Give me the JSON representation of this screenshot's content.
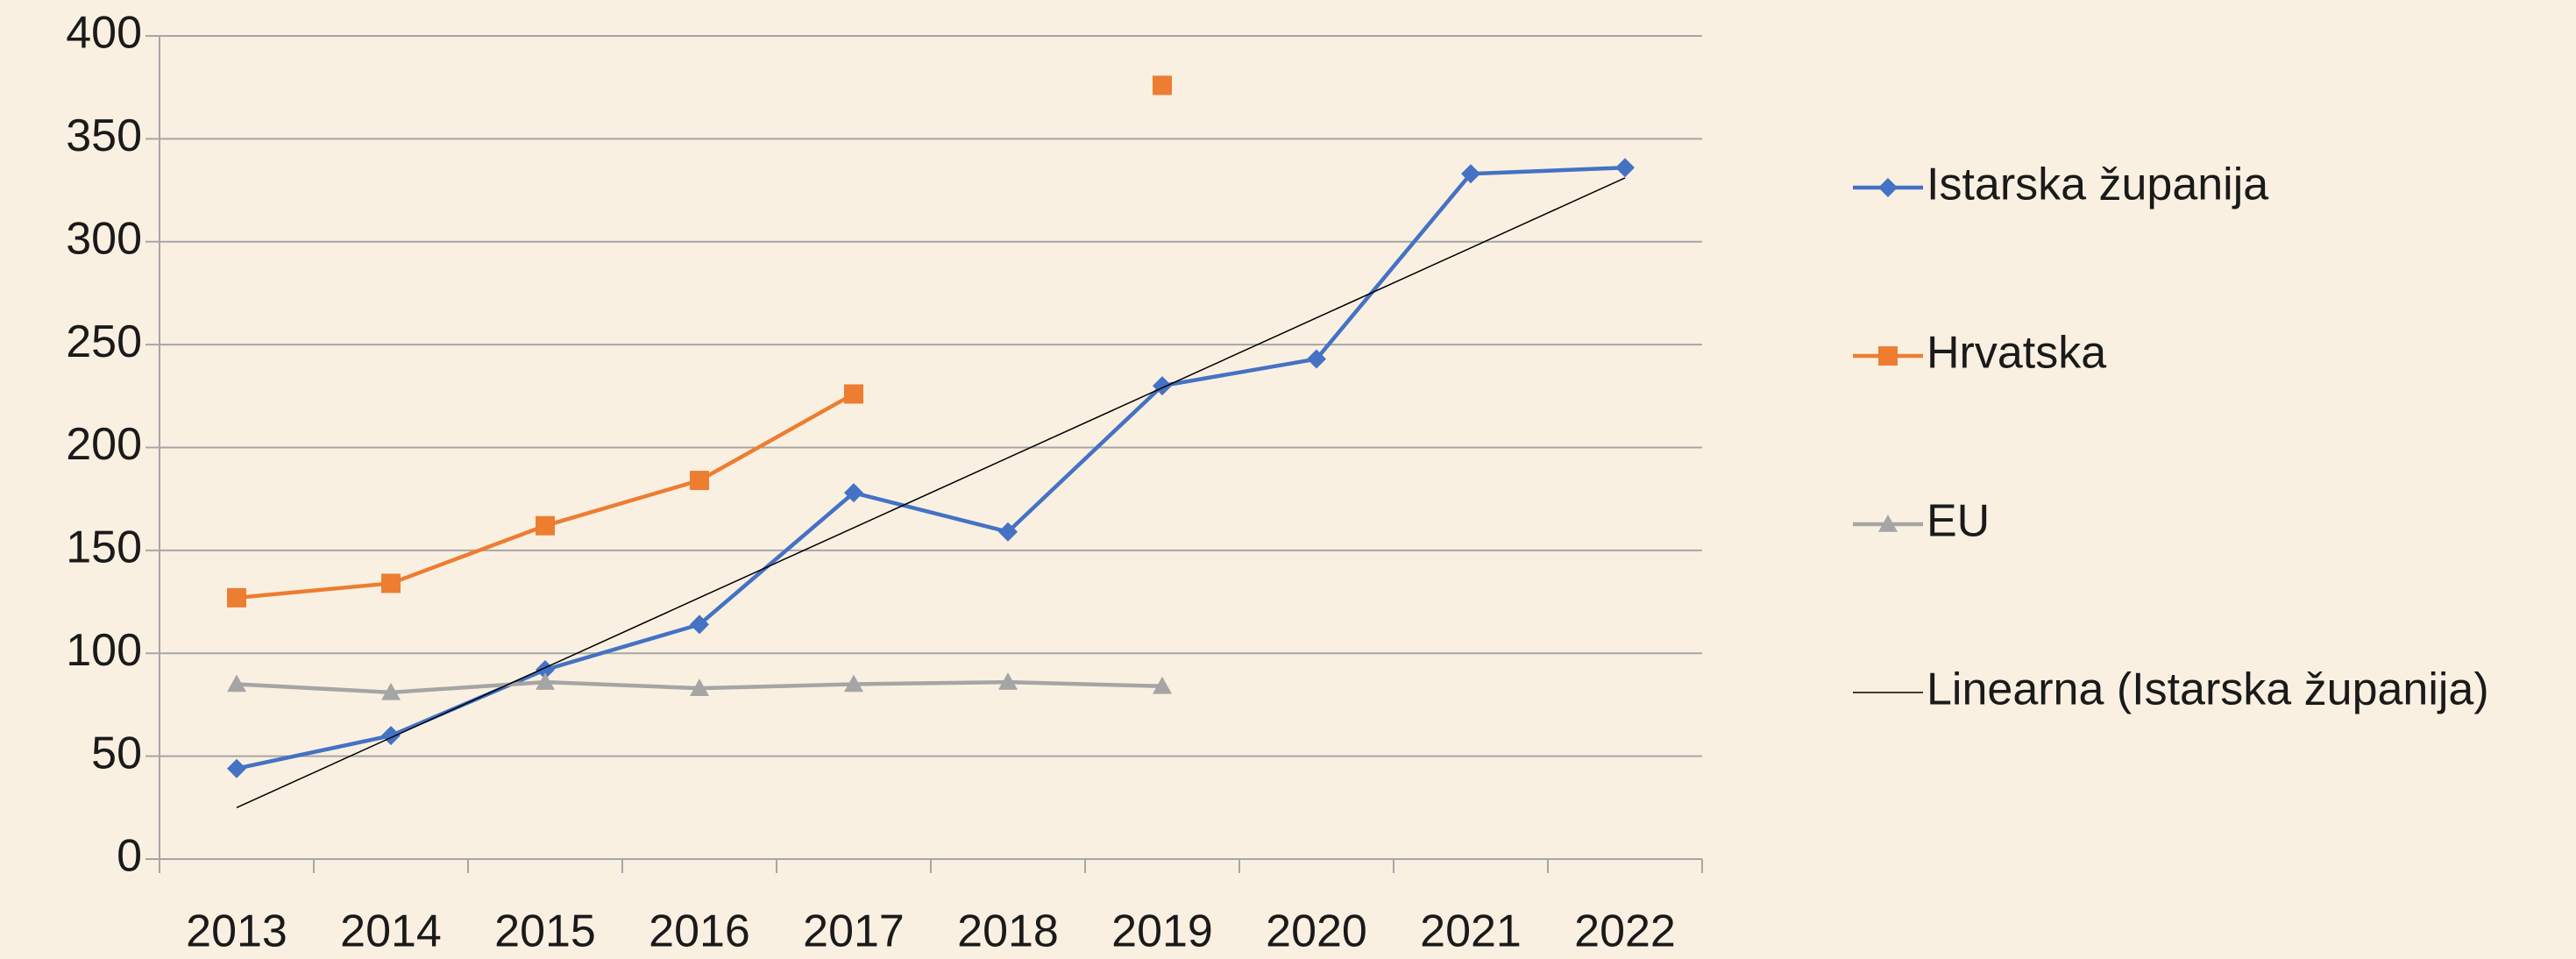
{
  "chart_data": {
    "type": "line",
    "categories": [
      "2013",
      "2014",
      "2015",
      "2016",
      "2017",
      "2018",
      "2019",
      "2020",
      "2021",
      "2022"
    ],
    "series": [
      {
        "name": "Istarska županija",
        "color": "#4472c4",
        "marker": "diamond",
        "values": [
          44,
          60,
          92,
          114,
          178,
          159,
          230,
          243,
          333,
          336
        ]
      },
      {
        "name": "Hrvatska",
        "color": "#ed7d31",
        "marker": "square",
        "values": [
          127,
          134,
          162,
          184,
          226,
          null,
          376,
          null,
          null,
          null
        ]
      },
      {
        "name": "EU",
        "color": "#a5a5a5",
        "marker": "triangle",
        "values": [
          85,
          81,
          86,
          83,
          85,
          86,
          84,
          null,
          null,
          null
        ]
      },
      {
        "name": "Linearna (Istarska županija)",
        "color": "#000000",
        "values": [
          25,
          59,
          93,
          127,
          161,
          195,
          229,
          263,
          297,
          331
        ]
      }
    ],
    "ylim": [
      0,
      400
    ],
    "yticks": [
      0,
      50,
      100,
      150,
      200,
      250,
      300,
      350,
      400
    ],
    "grid": true,
    "legend": "right"
  }
}
